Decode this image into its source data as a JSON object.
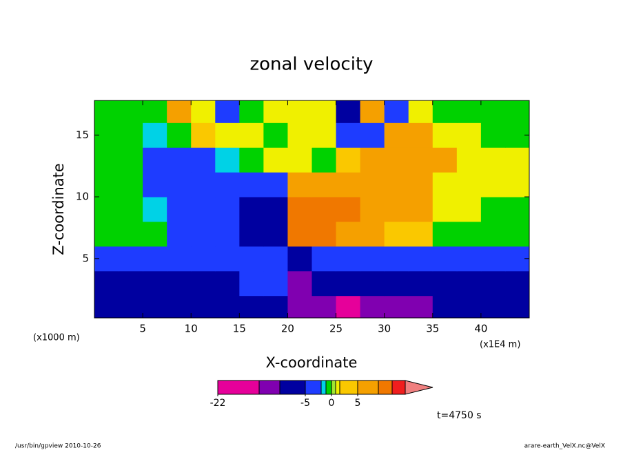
{
  "chart_data": {
    "type": "contour",
    "title": "zonal velocity",
    "x_label": "X-coordinate",
    "y_label": "Z-coordinate",
    "x_unit": "(x1E4 m)",
    "y_unit": "(x1000 m)",
    "annotation": "t=4750 s",
    "footer_left": "/usr/bin/gpview  2010-10-26",
    "footer_right": "arare-earth_VelX.nc@VelX",
    "xlim": [
      0,
      45
    ],
    "ylim": [
      0.2,
      17.8
    ],
    "xticks": [
      5,
      10,
      15,
      20,
      25,
      30,
      35,
      40
    ],
    "yticks": [
      5,
      10,
      15
    ],
    "x": [
      1.25,
      3.75,
      6.25,
      8.75,
      11.25,
      13.75,
      16.25,
      18.75,
      21.25,
      23.75,
      26.25,
      28.75,
      31.25,
      33.75,
      36.25,
      38.75,
      41.25,
      43.75
    ],
    "y": [
      1,
      3,
      5,
      7,
      9,
      11,
      13,
      15,
      17
    ],
    "z": [
      [
        -7,
        -7,
        -7,
        -7,
        -7,
        -7,
        -7,
        -7,
        -15,
        -12,
        -18,
        -12,
        -12,
        -12,
        -7,
        -7,
        -7,
        -7
      ],
      [
        -7,
        -7,
        -7,
        -7,
        -7,
        -6,
        -4,
        -4,
        -12,
        -7,
        -7,
        -7,
        -7,
        -7,
        -7,
        -7,
        -7,
        -7
      ],
      [
        -3,
        -3,
        -3,
        -3,
        -3,
        -3,
        -3,
        -3,
        -8,
        -3,
        -3,
        -3,
        -3,
        -3,
        -3,
        -3,
        -3,
        -3
      ],
      [
        -0.5,
        -0.5,
        -0.5,
        -3,
        -3,
        -3,
        -6,
        -6,
        12,
        12,
        7,
        7,
        3,
        3,
        -0.5,
        -0.5,
        -0.5,
        -0.5
      ],
      [
        -0.5,
        -0.5,
        -1.5,
        -3,
        -3,
        -3,
        -7,
        -7,
        12,
        12,
        12,
        7,
        7,
        7,
        1.5,
        1.5,
        -0.5,
        -0.5
      ],
      [
        -0.5,
        -0.5,
        -3,
        -3,
        -3,
        -3,
        -3,
        -3,
        7,
        7,
        7,
        7,
        7,
        7,
        1.5,
        1.5,
        1.5,
        1.5
      ],
      [
        -0.5,
        -0.5,
        -3,
        -3,
        -3,
        -1.5,
        -0.5,
        1.5,
        1.5,
        -0.5,
        3,
        7,
        7,
        7,
        7,
        1.5,
        1.5,
        1.5
      ],
      [
        -0.5,
        -0.5,
        -1.5,
        -0.5,
        3,
        1.5,
        1.5,
        -0.5,
        1.5,
        1.5,
        -3,
        -3,
        7,
        7,
        1.5,
        1.5,
        -0.5,
        -0.5
      ],
      [
        -0.5,
        -0.5,
        -0.5,
        7,
        1.5,
        -3,
        -0.5,
        1.5,
        1.5,
        1.5,
        -7,
        7,
        -3,
        1.5,
        -0.5,
        -0.5,
        -0.5,
        -0.5
      ]
    ],
    "levels": [
      -22,
      -15,
      -10,
      -5,
      -2,
      -1,
      0,
      1,
      2,
      5,
      10,
      15,
      20
    ],
    "colors": [
      "#e6009a",
      "#8000b0",
      "#0000a0",
      "#1e3cff",
      "#00d2e6",
      "#00d200",
      "#a0e632",
      "#f0f000",
      "#fac800",
      "#f5a000",
      "#f07800",
      "#f01e1e"
    ],
    "extend_color": "#f08080",
    "colorbar_ticks": [
      -22,
      -5,
      0,
      5
    ]
  }
}
